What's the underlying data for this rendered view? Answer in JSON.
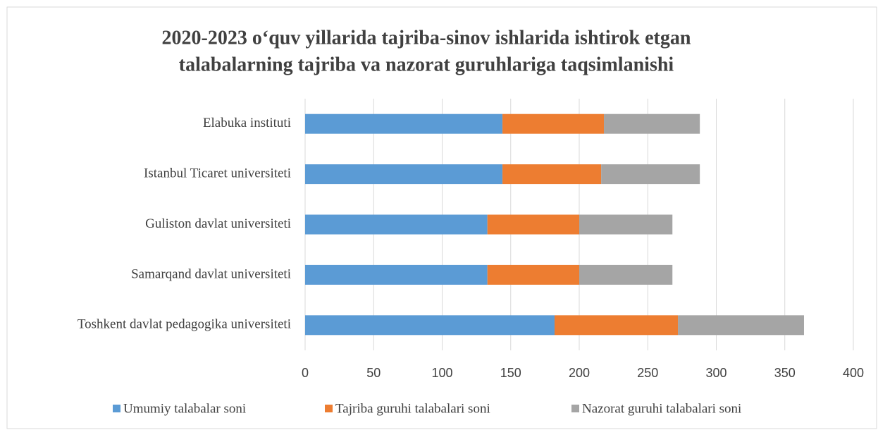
{
  "chart_data": {
    "type": "stacked-bar-horizontal",
    "title": "2020-2023 o‘quv yillarida tajriba-sinov ishlarida ishtirok etgan",
    "subtitle": "talabalarning tajriba va nazorat guruhlariga taqsimlanishi",
    "categories": [
      "Toshkent davlat pedagogika universiteti",
      "Samarqand davlat universiteti",
      "Guliston davlat universiteti",
      "Istanbul Ticaret universiteti",
      "Elabuka instituti"
    ],
    "series": [
      {
        "name": "Umumiy talabalar soni",
        "color": "#5b9bd5",
        "values": [
          182,
          133,
          133,
          144,
          144
        ]
      },
      {
        "name": "Tajriba guruhi talabalari soni",
        "color": "#ed7d31",
        "values": [
          90,
          67,
          67,
          72,
          74
        ]
      },
      {
        "name": "Nazorat guruhi talabalari soni",
        "color": "#a5a5a5",
        "values": [
          92,
          68,
          68,
          72,
          70
        ]
      }
    ],
    "xlim": [
      0,
      400
    ],
    "xticks": [
      0,
      50,
      100,
      150,
      200,
      250,
      300,
      350,
      400
    ],
    "grid": true,
    "legend": "bottom"
  }
}
